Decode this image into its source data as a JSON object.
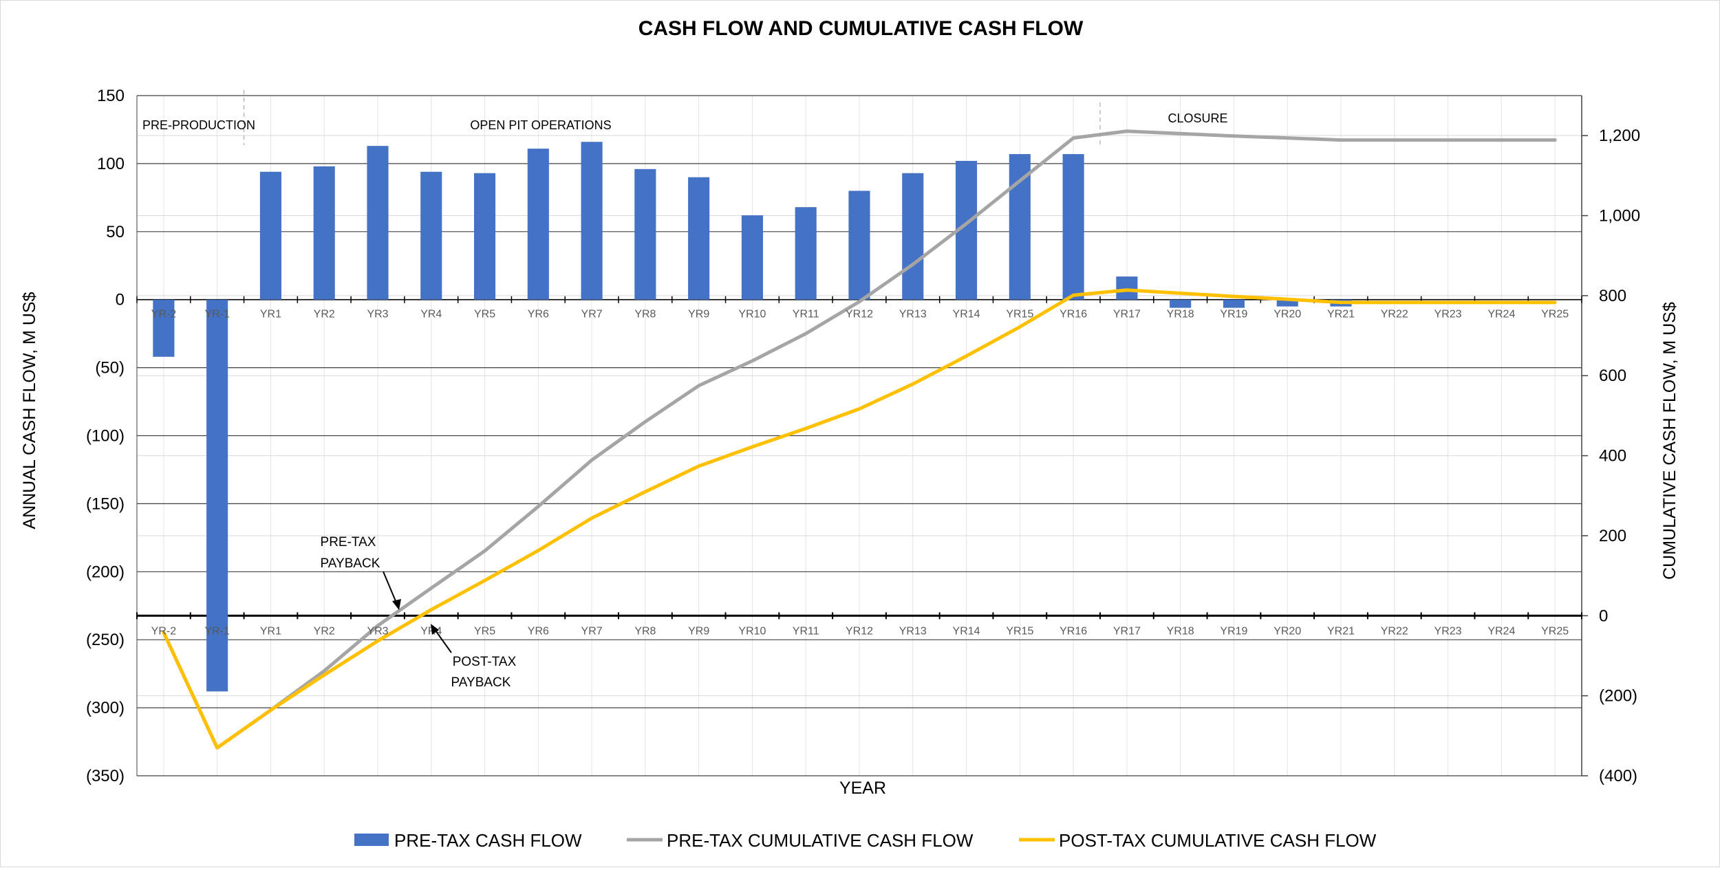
{
  "chart_data": {
    "type": "bar",
    "title": "CASH FLOW AND CUMULATIVE CASH FLOW",
    "xlabel": "YEAR",
    "ylabel_left": "ANNUAL CASH FLOW, M US$",
    "ylabel_right": "CUMULATIVE CASH FLOW, M US$",
    "ylim_left": [
      -350,
      150
    ],
    "ylim_right": [
      -400,
      1300
    ],
    "yticks_left": [
      150,
      100,
      50,
      0,
      -50,
      -100,
      -150,
      -200,
      -250,
      -300,
      -350
    ],
    "yticks_left_labels": [
      "150",
      "100",
      "50",
      "0",
      "(50)",
      "(100)",
      "(150)",
      "(200)",
      "(250)",
      "(300)",
      "(350)"
    ],
    "yticks_right": [
      1200,
      1000,
      800,
      600,
      400,
      200,
      0,
      -200,
      -400
    ],
    "yticks_right_labels": [
      "1,200",
      "1,000",
      "800",
      "600",
      "400",
      "200",
      "0",
      "(200)",
      "(400)"
    ],
    "grid": true,
    "legend_position": "bottom",
    "categories": [
      "YR-2",
      "YR-1",
      "YR1",
      "YR2",
      "YR3",
      "YR4",
      "YR5",
      "YR6",
      "YR7",
      "YR8",
      "YR9",
      "YR10",
      "YR11",
      "YR12",
      "YR13",
      "YR14",
      "YR15",
      "YR16",
      "YR17",
      "YR18",
      "YR19",
      "YR20",
      "YR21",
      "YR22",
      "YR23",
      "YR24",
      "YR25"
    ],
    "series": [
      {
        "name": "PRE-TAX CASH FLOW",
        "type": "bar",
        "axis": "left",
        "color": "#4472c4",
        "values": [
          -42,
          -288,
          94,
          98,
          113,
          94,
          93,
          111,
          116,
          96,
          90,
          62,
          68,
          80,
          93,
          102,
          107,
          107,
          17,
          -6,
          -6,
          -5,
          -5,
          0,
          0,
          0,
          0
        ]
      },
      {
        "name": "PRE-TAX CUMULATIVE CASH FLOW",
        "type": "line",
        "axis": "right",
        "color": "#a5a5a5",
        "values": [
          -42,
          -330,
          -236,
          -138,
          -25,
          69,
          162,
          273,
          389,
          485,
          575,
          637,
          705,
          785,
          878,
          980,
          1087,
          1194,
          1211,
          1205,
          1199,
          1194,
          1189,
          1189,
          1189,
          1189,
          1189
        ]
      },
      {
        "name": "POST-TAX CUMULATIVE CASH FLOW",
        "type": "line",
        "axis": "right",
        "color": "#ffc000",
        "values": [
          -42,
          -330,
          -236,
          -148,
          -63,
          15,
          88,
          163,
          244,
          310,
          374,
          422,
          468,
          517,
          579,
          649,
          722,
          801,
          814,
          806,
          798,
          791,
          783,
          783,
          783,
          783,
          783
        ]
      }
    ],
    "annotations": {
      "phases": [
        "PRE-PRODUCTION",
        "OPEN PIT OPERATIONS",
        "CLOSURE"
      ],
      "pretax_payback": [
        "PRE-TAX",
        "PAYBACK"
      ],
      "posttax_payback": [
        "POST-TAX",
        "PAYBACK"
      ]
    }
  }
}
